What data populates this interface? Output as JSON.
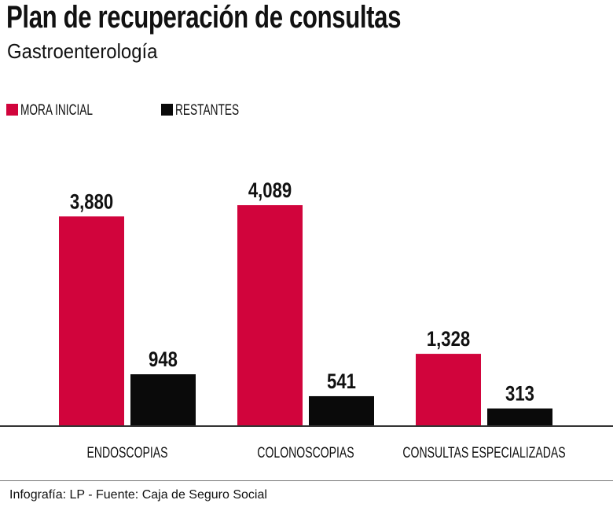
{
  "title": "Plan de recuperación de consultas",
  "subtitle": "Gastroenterología",
  "footer": "Infografía: LP - Fuente: Caja de Seguro Social",
  "colors": {
    "mora": "#d1043c",
    "restantes": "#0a0a0a"
  },
  "chart_data": {
    "type": "bar",
    "title": "Plan de recuperación de consultas",
    "subtitle": "Gastroenterología",
    "categories": [
      "ENDOSCOPIAS",
      "COLONOSCOPIAS",
      "CONSULTAS ESPECIALIZADAS"
    ],
    "series": [
      {
        "name": "MORA INICIAL",
        "values": [
          3880,
          4089,
          1328
        ],
        "labels": [
          "3,880",
          "4,089",
          "1,328"
        ]
      },
      {
        "name": "RESTANTES",
        "values": [
          948,
          541,
          313
        ],
        "labels": [
          "948",
          "541",
          "313"
        ]
      }
    ],
    "legend": "top-left",
    "grid": false,
    "ylim": [
      0,
      4381
    ]
  }
}
